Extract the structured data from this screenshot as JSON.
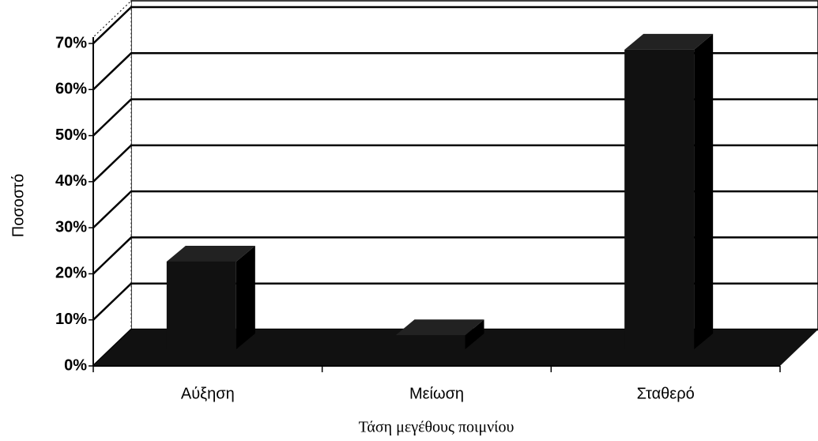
{
  "chart_data": {
    "type": "bar3d",
    "x_label": "Τάση μεγέθους ποιμνίου",
    "y_label": "Ποσοστό",
    "categories": [
      "Αύξηση",
      "Μείωση",
      "Σταθερό"
    ],
    "values": [
      23,
      7,
      69
    ],
    "color": "#111111",
    "ylim": [
      0,
      70
    ],
    "yticks": [
      {
        "value": 0,
        "label": "0%"
      },
      {
        "value": 10,
        "label": "10%"
      },
      {
        "value": 20,
        "label": "20%"
      },
      {
        "value": 30,
        "label": "30%"
      },
      {
        "value": 40,
        "label": "40%"
      },
      {
        "value": 50,
        "label": "50%"
      },
      {
        "value": 60,
        "label": "60%"
      },
      {
        "value": 70,
        "label": "70%"
      }
    ],
    "grid": true
  }
}
